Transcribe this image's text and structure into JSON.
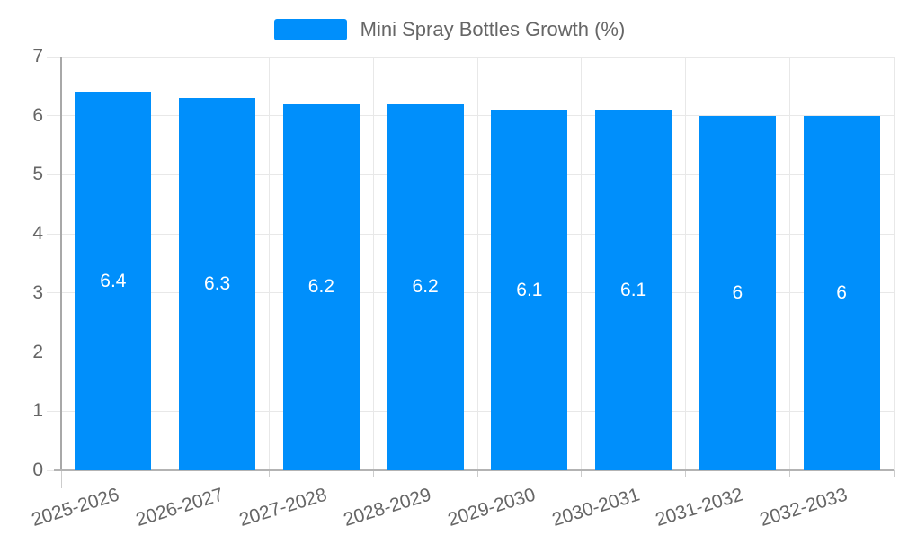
{
  "legend": {
    "label": "Mini Spray Bottles Growth (%)"
  },
  "chart_data": {
    "type": "bar",
    "title": "Mini Spray Bottles Growth (%)",
    "categories": [
      "2025-2026",
      "2026-2027",
      "2027-2028",
      "2028-2029",
      "2029-2030",
      "2030-2031",
      "2031-2032",
      "2032-2033"
    ],
    "values": [
      6.4,
      6.3,
      6.2,
      6.2,
      6.1,
      6.1,
      6,
      6
    ],
    "value_labels": [
      "6.4",
      "6.3",
      "6.2",
      "6.2",
      "6.1",
      "6.1",
      "6",
      "6"
    ],
    "xlabel": "",
    "ylabel": "",
    "ylim": [
      0,
      7
    ],
    "yticks": [
      0,
      1,
      2,
      3,
      4,
      5,
      6,
      7
    ],
    "grid": true,
    "legend_position": "top",
    "bar_color": "#008FFB",
    "value_label_color": "#ffffff",
    "label_color": "#666666",
    "grid_color": "#e8e8e8",
    "axis_color": "#a8a8a8",
    "bottom_axis_color": "#b3b3b3",
    "tick_color": "#cccccc"
  }
}
